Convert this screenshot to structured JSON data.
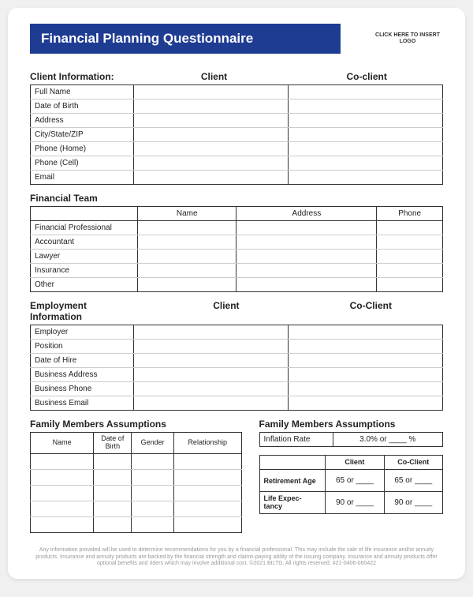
{
  "colors": {
    "title_bg": "#1f3c93",
    "title_text": "#ffffff",
    "border": "#333333",
    "inner_line": "#cccccc",
    "page_bg": "#ffffff",
    "footer_text": "#999999"
  },
  "header": {
    "title": "Financial Planning Questionnaire",
    "logo_placeholder": "CLICK HERE TO INSERT LOGO"
  },
  "client_info": {
    "heading": "Client Information:",
    "col1": "Client",
    "col2": "Co-client",
    "rows": [
      "Full Name",
      "Date of Birth",
      "Address",
      "City/State/ZIP",
      "Phone (Home)",
      "Phone (Cell)",
      "Email"
    ]
  },
  "financial_team": {
    "heading": "Financial Team",
    "cols": [
      "Name",
      "Address",
      "Phone"
    ],
    "rows": [
      "Financial Professional",
      "Accountant",
      "Lawyer",
      "Insurance",
      "Other"
    ]
  },
  "employment": {
    "heading": "Employment Information",
    "col1": "Client",
    "col2": "Co-Client",
    "rows": [
      "Employer",
      "Position",
      "Date of Hire",
      "Business Address",
      "Business Phone",
      "Business Email"
    ]
  },
  "family_left": {
    "heading": "Family Members Assumptions",
    "cols": [
      "Name",
      "Date of Birth",
      "Gender",
      "Relationship"
    ],
    "blank_rows": 5
  },
  "family_right": {
    "heading": "Family Members Assumptions",
    "inflation": {
      "label": "Inflation Rate",
      "value": "3.0% or ____  %"
    },
    "table": {
      "cols": [
        "",
        "Client",
        "Co-Client"
      ],
      "rows": [
        {
          "label": "Retirement Age",
          "client": "65 or ____",
          "coclient": "65 or ____"
        },
        {
          "label": "Life Expectancy",
          "client": "90 or ____",
          "coclient": "90 or ____"
        }
      ]
    }
  },
  "footer": "Any information provided will be used to determine recommendations for you by a financial professional. This may include the sale of life insurance and/or annuity products. Insurance and annuity products are backed by the financial strength and claims-paying ability of the issuing company. Insurance and annuity products offer optional benefits and riders which may involve additional cost. ©2021 BILTD. All rights reserved. #21-0406-060422"
}
